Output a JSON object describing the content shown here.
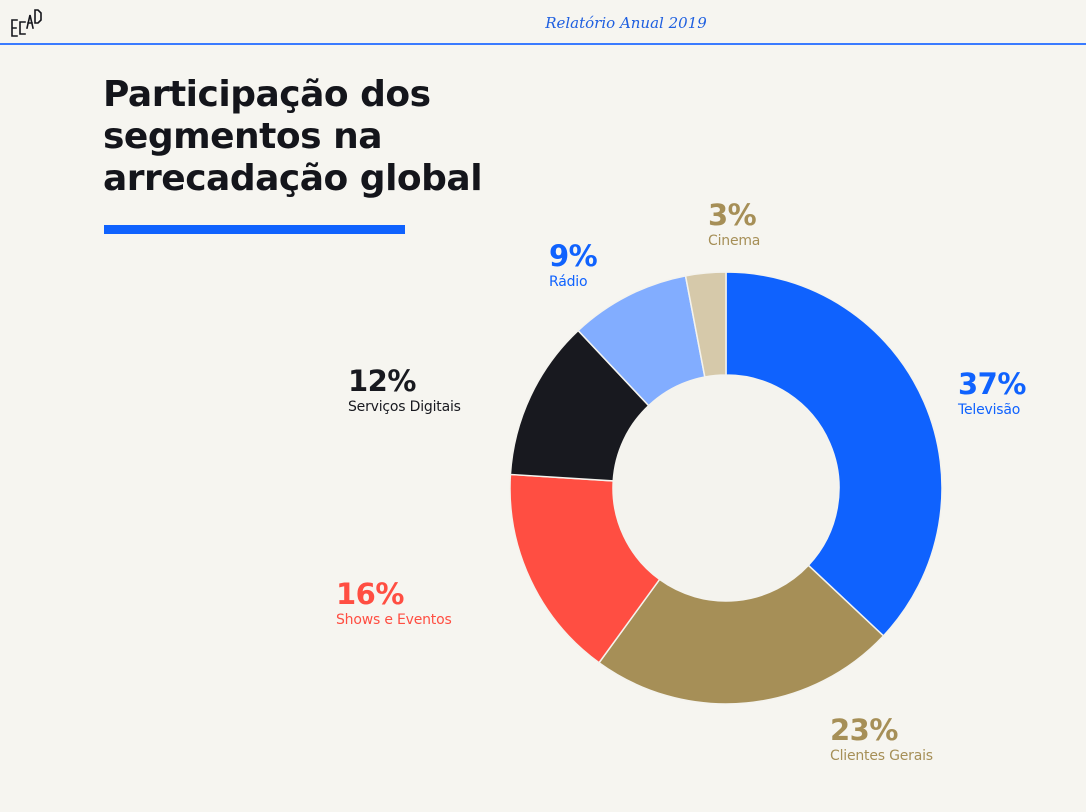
{
  "header": {
    "logo_text": "ECAD",
    "report_title": "Relatório Anual 2019",
    "rule_color": "#3a7bff"
  },
  "page_title": "Participação dos segmentos na arrecadação global",
  "accent_rule_color": "#0f62fe",
  "chart_data": {
    "type": "pie",
    "donut": true,
    "title": "Participação dos segmentos na arrecadação global",
    "unit": "%",
    "start": "12 o'clock",
    "direction": "clockwise",
    "slices": [
      {
        "name": "Televisão",
        "value": 37,
        "label": "37%",
        "color": "#0f62fe",
        "label_color": "#0f62fe"
      },
      {
        "name": "Clientes Gerais",
        "value": 23,
        "label": "23%",
        "color": "#a68f57",
        "label_color": "#a68f57"
      },
      {
        "name": "Shows e Eventos",
        "value": 16,
        "label": "16%",
        "color": "#ff4e42",
        "label_color": "#ff4e42"
      },
      {
        "name": "Serviços Digitais",
        "value": 12,
        "label": "12%",
        "color": "#18191f",
        "label_color": "#18191f"
      },
      {
        "name": "Rádio",
        "value": 9,
        "label": "9%",
        "color": "#82adff",
        "label_color": "#0f62fe"
      },
      {
        "name": "Cinema",
        "value": 3,
        "label": "3%",
        "color": "#d6c9aa",
        "label_color": "#a68f57"
      }
    ],
    "center_color": "#f4f3ee"
  }
}
